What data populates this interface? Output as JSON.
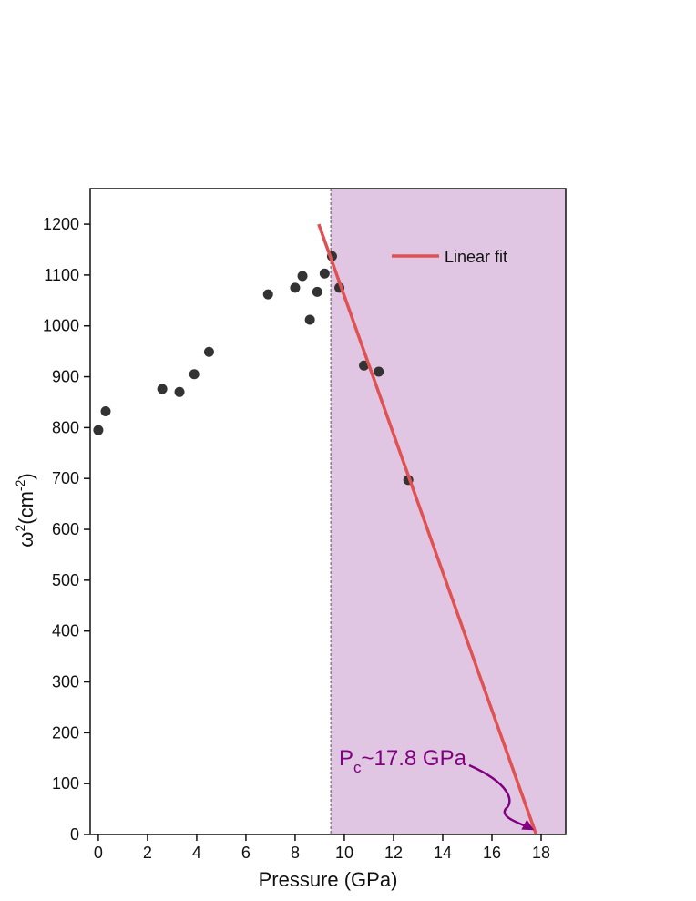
{
  "chart_data": {
    "type": "scatter",
    "x_label": "Pressure (GPa)",
    "y_label": {
      "symbol": "ω",
      "symbol_sup": "2",
      "unit": "(cm",
      "unit_sup": "-2",
      "close": ")"
    },
    "xlim": [
      -0.33,
      19
    ],
    "ylim": [
      0,
      1270
    ],
    "xticks": [
      0,
      2,
      4,
      6,
      8,
      10,
      12,
      14,
      16,
      18
    ],
    "yticks": [
      0,
      100,
      200,
      300,
      400,
      500,
      600,
      700,
      800,
      900,
      1000,
      1100,
      1200
    ],
    "shade_from": 9.45,
    "shade_color": "#e0c6e2",
    "legend": "upper right",
    "series": [
      {
        "type": "scatter",
        "color": "#333333",
        "x": [
          0,
          0.3,
          2.6,
          3.3,
          3.9,
          4.5,
          6.9,
          8.0,
          8.3,
          8.6,
          8.9,
          9.2,
          9.5,
          9.8,
          10.8,
          11.4,
          12.6
        ],
        "values": [
          795,
          832,
          876,
          870,
          905,
          949,
          1062,
          1075,
          1098,
          1012,
          1067,
          1103,
          1137,
          1075,
          922,
          910,
          697
        ]
      },
      {
        "type": "line",
        "name": "Linear fit",
        "color": "#e05252",
        "x": [
          8.96,
          17.8
        ],
        "values": [
          1200,
          0
        ]
      }
    ],
    "annotation": {
      "main": "P",
      "sub": "c",
      "rest": "~17.8 GPa",
      "color": "#800080"
    }
  }
}
